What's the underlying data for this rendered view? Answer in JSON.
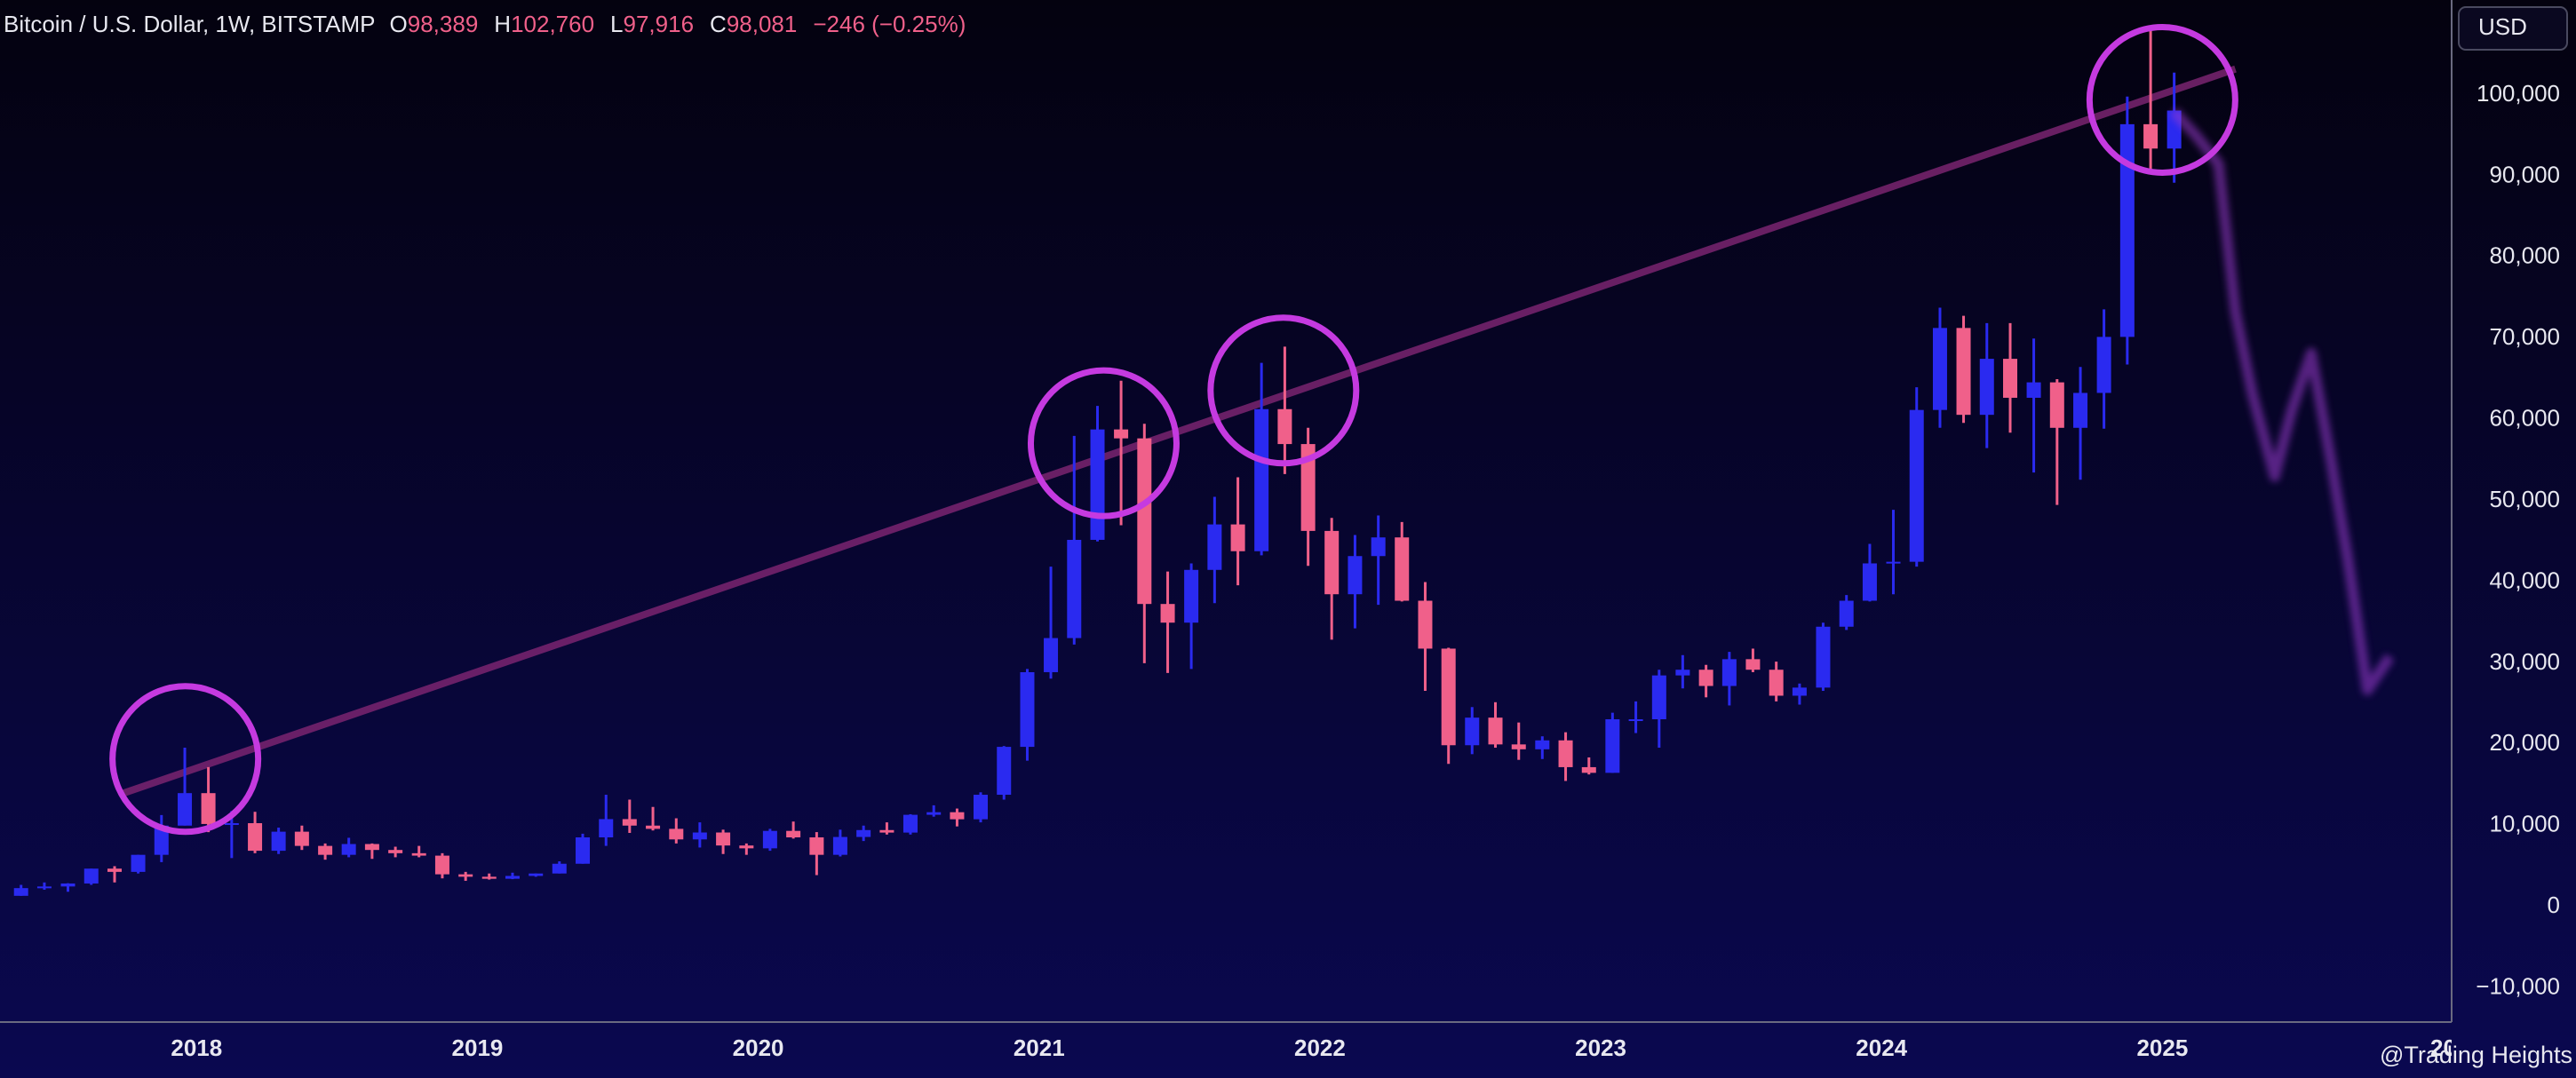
{
  "header": {
    "symbol": "Bitcoin / U.S. Dollar, 1W, BITSTAMP",
    "ohlc": [
      {
        "label": "O",
        "value": "98,389"
      },
      {
        "label": "H",
        "value": "102,760"
      },
      {
        "label": "L",
        "value": "97,916"
      },
      {
        "label": "C",
        "value": "98,081"
      }
    ],
    "change": "−246 (−0.25%)",
    "currency": "USD",
    "watermark": "@Trading Heights"
  },
  "chart_data": {
    "type": "candlestick",
    "up_color": "#2a2af0",
    "down_color": "#f0608a",
    "candles": {
      "x": [
        2017.375,
        2017.458,
        2017.542,
        2017.625,
        2017.708,
        2017.792,
        2017.875,
        2017.958,
        2018.042,
        2018.125,
        2018.208,
        2018.292,
        2018.375,
        2018.458,
        2018.542,
        2018.625,
        2018.708,
        2018.792,
        2018.875,
        2018.958,
        2019.042,
        2019.125,
        2019.208,
        2019.292,
        2019.375,
        2019.458,
        2019.542,
        2019.625,
        2019.708,
        2019.792,
        2019.875,
        2019.958,
        2020.042,
        2020.125,
        2020.208,
        2020.292,
        2020.375,
        2020.458,
        2020.542,
        2020.625,
        2020.708,
        2020.792,
        2020.875,
        2020.958,
        2021.042,
        2021.125,
        2021.208,
        2021.292,
        2021.375,
        2021.458,
        2021.542,
        2021.625,
        2021.708,
        2021.792,
        2021.875,
        2021.958,
        2022.042,
        2022.125,
        2022.208,
        2022.292,
        2022.375,
        2022.458,
        2022.542,
        2022.625,
        2022.708,
        2022.792,
        2022.875,
        2022.958,
        2023.042,
        2023.125,
        2023.208,
        2023.292,
        2023.375,
        2023.458,
        2023.542,
        2023.625,
        2023.708,
        2023.792,
        2023.875,
        2023.958,
        2024.042,
        2024.125,
        2024.208,
        2024.292,
        2024.375,
        2024.458,
        2024.542,
        2024.625,
        2024.708,
        2024.792,
        2024.875,
        2024.958,
        2025.042
      ],
      "open": [
        1350,
        2300,
        2500,
        2870,
        4700,
        4300,
        6400,
        10000,
        14000,
        10200,
        10300,
        6900,
        9250,
        7500,
        6400,
        7730,
        7000,
        6600,
        6300,
        4000,
        3700,
        3450,
        3800,
        4100,
        5300,
        8550,
        10800,
        10000,
        9600,
        8300,
        9150,
        7550,
        7200,
        9350,
        8550,
        6400,
        8600,
        9450,
        9140,
        11330,
        11650,
        10780,
        13800,
        19700,
        28900,
        33100,
        45200,
        58800,
        57700,
        37300,
        35000,
        41500,
        47100,
        43800,
        61300,
        57000,
        46300,
        38500,
        43200,
        45500,
        37700,
        31800,
        19900,
        23300,
        20000,
        19400,
        20500,
        17200,
        16500,
        23100,
        23100,
        28500,
        29200,
        27200,
        30500,
        29200,
        26000,
        27000,
        34500,
        37700,
        42300,
        42500,
        61200,
        71300,
        60600,
        67500,
        62700,
        64600,
        59000,
        63300,
        70200,
        96400,
        93400
      ],
      "high": [
        2700,
        3000,
        2900,
        4700,
        5000,
        6400,
        11300,
        19600,
        17200,
        11800,
        11700,
        9750,
        10000,
        7800,
        8500,
        7800,
        7400,
        7500,
        6600,
        4300,
        4100,
        4200,
        4100,
        5600,
        9000,
        13800,
        13200,
        12300,
        10900,
        10400,
        9500,
        7800,
        9600,
        10500,
        9200,
        9500,
        10000,
        10400,
        11400,
        12500,
        12100,
        14100,
        19800,
        29300,
        41900,
        58000,
        61700,
        64800,
        59500,
        41300,
        42300,
        50500,
        52900,
        67000,
        69000,
        59000,
        47900,
        45800,
        48200,
        47400,
        40000,
        31900,
        24600,
        25200,
        22700,
        21000,
        21500,
        18400,
        23900,
        25300,
        29200,
        31000,
        29800,
        31400,
        31800,
        30200,
        27500,
        35000,
        38400,
        44700,
        48900,
        64000,
        73800,
        72800,
        71900,
        71900,
        70000,
        65000,
        66500,
        73600,
        99800,
        108000,
        102760
      ],
      "low": [
        1350,
        2100,
        1850,
        2700,
        3000,
        4100,
        5500,
        10000,
        9200,
        6000,
        6600,
        6500,
        7000,
        5800,
        6100,
        5900,
        6100,
        6100,
        3500,
        3200,
        3350,
        3400,
        3700,
        4100,
        5300,
        7500,
        9100,
        9400,
        7800,
        7300,
        6500,
        6400,
        6900,
        8400,
        3900,
        6200,
        8100,
        8900,
        8900,
        11100,
        9900,
        10400,
        13200,
        18000,
        28100,
        32300,
        45000,
        47000,
        30000,
        28800,
        29300,
        37400,
        39600,
        43300,
        53300,
        42000,
        32900,
        34300,
        37200,
        37600,
        26600,
        17600,
        18800,
        19600,
        18100,
        18200,
        15500,
        16300,
        16500,
        21400,
        19600,
        26900,
        25800,
        24800,
        28900,
        25300,
        24900,
        26600,
        34100,
        37600,
        38500,
        41900,
        59000,
        59600,
        56500,
        58400,
        53500,
        49500,
        52600,
        58900,
        66800,
        90500,
        89200
      ],
      "close": [
        2300,
        2500,
        2870,
        4700,
        4300,
        6400,
        10000,
        14000,
        10200,
        10300,
        6900,
        9250,
        7500,
        6400,
        7730,
        7000,
        6600,
        6300,
        4000,
        3700,
        3450,
        3800,
        4100,
        5300,
        8550,
        10800,
        10000,
        9600,
        8300,
        9150,
        7550,
        7200,
        9350,
        8550,
        6400,
        8600,
        9450,
        9140,
        11330,
        11650,
        10780,
        13800,
        19700,
        28900,
        33100,
        45200,
        58800,
        57700,
        37300,
        35000,
        41500,
        47100,
        43800,
        61300,
        57000,
        46300,
        38500,
        43200,
        45500,
        37700,
        31800,
        19900,
        23300,
        20000,
        19400,
        20500,
        17200,
        16500,
        23100,
        23100,
        28500,
        29200,
        27200,
        30500,
        29200,
        26000,
        27000,
        34500,
        37700,
        42300,
        42500,
        61200,
        71300,
        60600,
        67500,
        62700,
        64600,
        59000,
        63300,
        70200,
        96400,
        93400,
        98081
      ]
    },
    "trendline": {
      "x": [
        2017.74,
        2025.26
      ],
      "values": [
        14000,
        103200
      ],
      "color": "#7a2470"
    },
    "highlights": {
      "x": [
        2017.96,
        2021.23,
        2021.87,
        2025.0
      ],
      "values": [
        18200,
        57100,
        63600,
        99400
      ],
      "color": "#c53ae0"
    },
    "projection": {
      "x": [
        2025.04,
        2025.12,
        2025.2,
        2025.26,
        2025.32,
        2025.4,
        2025.46,
        2025.53,
        2025.6,
        2025.66,
        2025.73,
        2025.81
      ],
      "values": [
        98000,
        95000,
        91500,
        73300,
        63200,
        53000,
        61100,
        68200,
        55000,
        42900,
        26700,
        30800
      ],
      "color": "#9a3acd"
    },
    "xlim": [
      2017.3,
      2026.03
    ],
    "xticks": [
      2018,
      2019,
      2020,
      2021,
      2022,
      2023,
      2024,
      2025,
      {
        "value": 2026,
        "label": "20"
      }
    ],
    "ylim": [
      -14200,
      111700
    ],
    "yticks": [
      {
        "value": -10000,
        "label": "−10,000"
      },
      0,
      {
        "value": 10000,
        "label": "10,000"
      },
      {
        "value": 20000,
        "label": "20,000"
      },
      {
        "value": 30000,
        "label": "30,000"
      },
      {
        "value": 40000,
        "label": "40,000"
      },
      {
        "value": 50000,
        "label": "50,000"
      },
      {
        "value": 60000,
        "label": "60,000"
      },
      {
        "value": 70000,
        "label": "70,000"
      },
      {
        "value": 80000,
        "label": "80,000"
      },
      {
        "value": 90000,
        "label": "90,000"
      },
      {
        "value": 100000,
        "label": "100,000"
      }
    ],
    "grid": false
  }
}
